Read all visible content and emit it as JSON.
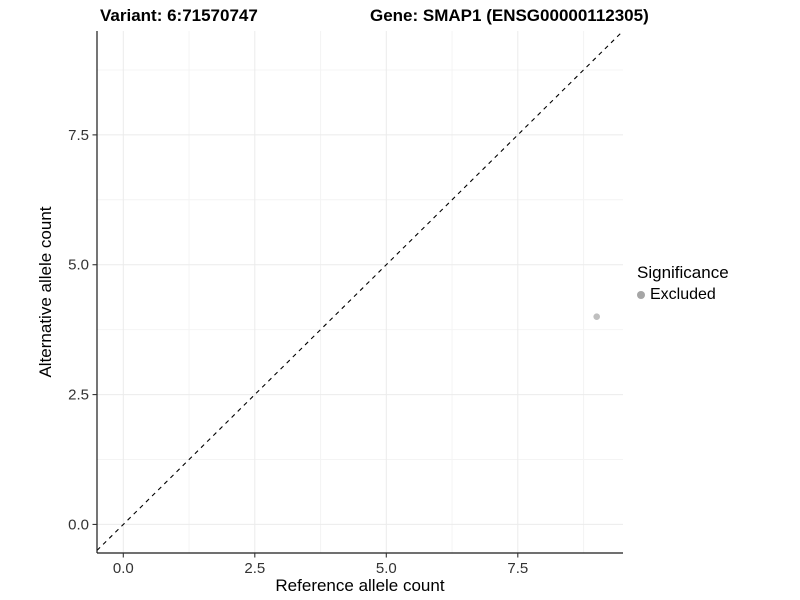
{
  "header": {
    "variant_title": "Variant: 6:71570747",
    "gene_title": "Gene: SMAP1 (ENSG00000112305)"
  },
  "colors": {
    "background": "#ffffff",
    "grid_major": "#ebebeb",
    "grid_minor": "#f4f4f4",
    "axis_line": "#1a1a1a",
    "tick_mark": "#333333",
    "tick_label": "#333333",
    "point": "#bfbfbf",
    "legend_key": "#a6a6a6",
    "reference_line": "#000000"
  },
  "chart_data": {
    "type": "scatter",
    "title_left": "Variant: 6:71570747",
    "title_right": "Gene: SMAP1 (ENSG00000112305)",
    "xlabel": "Reference allele count",
    "ylabel": "Alternative allele count",
    "xlim": [
      -0.5,
      9.5
    ],
    "ylim": [
      -0.55,
      9.5
    ],
    "x_ticks": [
      0,
      2.5,
      5,
      7.5
    ],
    "x_tick_labels": [
      "0.0",
      "2.5",
      "5.0",
      "7.5"
    ],
    "y_ticks": [
      0,
      2.5,
      5,
      7.5
    ],
    "y_tick_labels": [
      "0.0",
      "2.5",
      "5.0",
      "7.5"
    ],
    "x_minor_ticks": [
      1.25,
      3.75,
      6.25,
      8.75
    ],
    "y_minor_ticks": [
      1.25,
      3.75,
      6.25,
      8.75
    ],
    "grid": true,
    "points": [
      {
        "x": 9,
        "y": 4,
        "series": "Excluded"
      }
    ],
    "point_radius_px": 3.3,
    "reference_line": {
      "type": "identity y=x",
      "style": "dashed"
    },
    "legend": {
      "position": "right",
      "title": "Significance",
      "entries": [
        {
          "label": "Excluded",
          "color": "#a6a6a6"
        }
      ]
    }
  }
}
